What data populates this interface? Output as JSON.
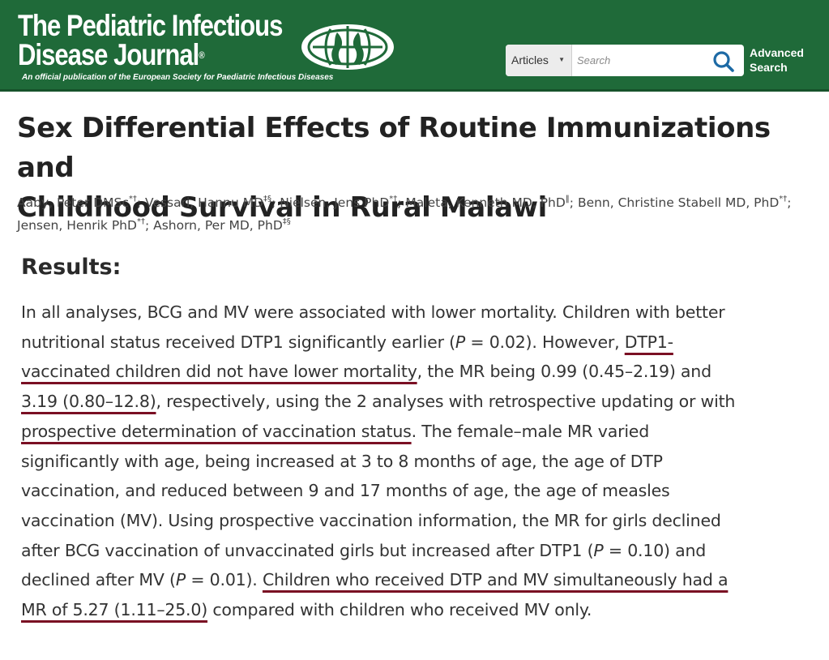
{
  "header": {
    "journal_title_line1": "The Pediatric Infectious",
    "journal_title_line2": "Disease Journal",
    "registered_mark": "®",
    "subtitle": "An official publication of the European Society for Paediatric Infectious Diseases",
    "background_color": "#1f6a39",
    "search": {
      "scope_label": "Articles",
      "placeholder": "Search",
      "button_icon": "search-icon",
      "accent_color": "#1d6aa5"
    },
    "advanced_search_line1": "Advanced",
    "advanced_search_line2": "Search"
  },
  "article": {
    "title_line1": "Sex Differential Effects of Routine Immunizations and",
    "title_line2": "Childhood Survival in Rural Malawi",
    "authors": [
      {
        "name": "Aaby, Peter DMSc",
        "sup": "*†",
        "sep": "; "
      },
      {
        "name": "Vessari, Hannu MD",
        "sup": "‡§",
        "sep": "; "
      },
      {
        "name": "Nielsen, Jens PhD",
        "sup": "*†",
        "sep": "; "
      },
      {
        "name": "Maleta, Kenneth MD, PhD",
        "sup": "‖",
        "sep": "; "
      },
      {
        "name": "Benn, Christine Stabell MD, PhD",
        "sup": "*†",
        "sep": "; "
      },
      {
        "name": "Jensen, Henrik PhD",
        "sup": "*†",
        "sep": "; "
      },
      {
        "name": "Ashorn, Per MD, PhD",
        "sup": "‡§",
        "sep": ""
      }
    ]
  },
  "results": {
    "heading": "Results:",
    "p1": "In all analyses, BCG and MV were associated with lower mortality. Children with better nutritional status received DTP1 significantly earlier (",
    "p1_italic": "P",
    "p1_b": " = 0.02). However, ",
    "u1": "DTP1-vaccinated children did not have lower mortality",
    "p2": ", the MR being 0.99 (0.45–2.19) and ",
    "u2": "3.19 (0.80–12.8)",
    "p3": ", respectively, using the 2 analyses with retrospective updating or with ",
    "u3": "prospective determination of vaccination status",
    "p4": ". The female–male MR varied significantly with age, being increased at 3 to 8 months of age, the age of DTP vaccination, and reduced between 9 and 17 months of age, the age of measles vaccination (MV). Using prospective vaccination information, the MR for girls declined after BCG vaccination of unvaccinated girls but increased after DTP1 (",
    "p4_italic": "P",
    "p4_b": " = 0.10) and declined after MV (",
    "p4_italic2": "P",
    "p4_c": " = 0.01). ",
    "u4": "Children who received DTP and MV simultaneously had a MR of 5.27 (1.11–25.0)",
    "p5": " compared with children who received MV only.",
    "underline_color": "#7a0f23"
  }
}
